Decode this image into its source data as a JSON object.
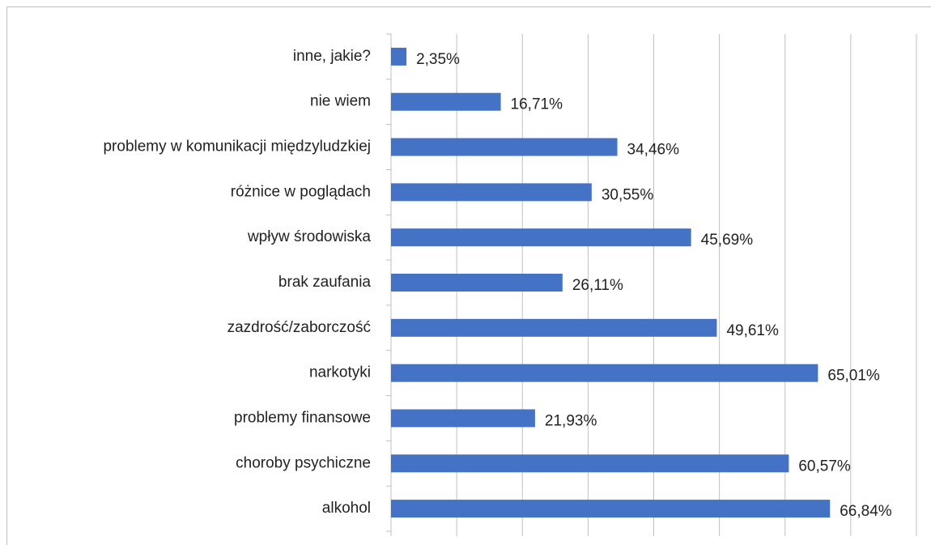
{
  "chart_data": {
    "type": "barh",
    "categories": [
      "inne, jakie?",
      "nie wiem",
      "problemy w komunikacji międzyludzkiej",
      "różnice w poglądach",
      "wpływ środowiska",
      "brak zaufania",
      "zazdrość/zaborczość",
      "narkotyki",
      "problemy finansowe",
      "choroby psychiczne",
      "alkohol"
    ],
    "values": [
      2.35,
      16.71,
      34.46,
      30.55,
      45.69,
      26.11,
      49.61,
      65.01,
      21.93,
      60.57,
      66.84
    ],
    "value_labels": [
      "2,35%",
      "16,71%",
      "34,46%",
      "30,55%",
      "45,69%",
      "26,11%",
      "49,61%",
      "65,01%",
      "21,93%",
      "60,57%",
      "66,84%"
    ],
    "color": "#4472c4",
    "xlim": [
      0,
      80
    ],
    "xticks": [
      0,
      10,
      20,
      30,
      40,
      50,
      60,
      70,
      80
    ],
    "grid": true,
    "tick_labels": false
  }
}
